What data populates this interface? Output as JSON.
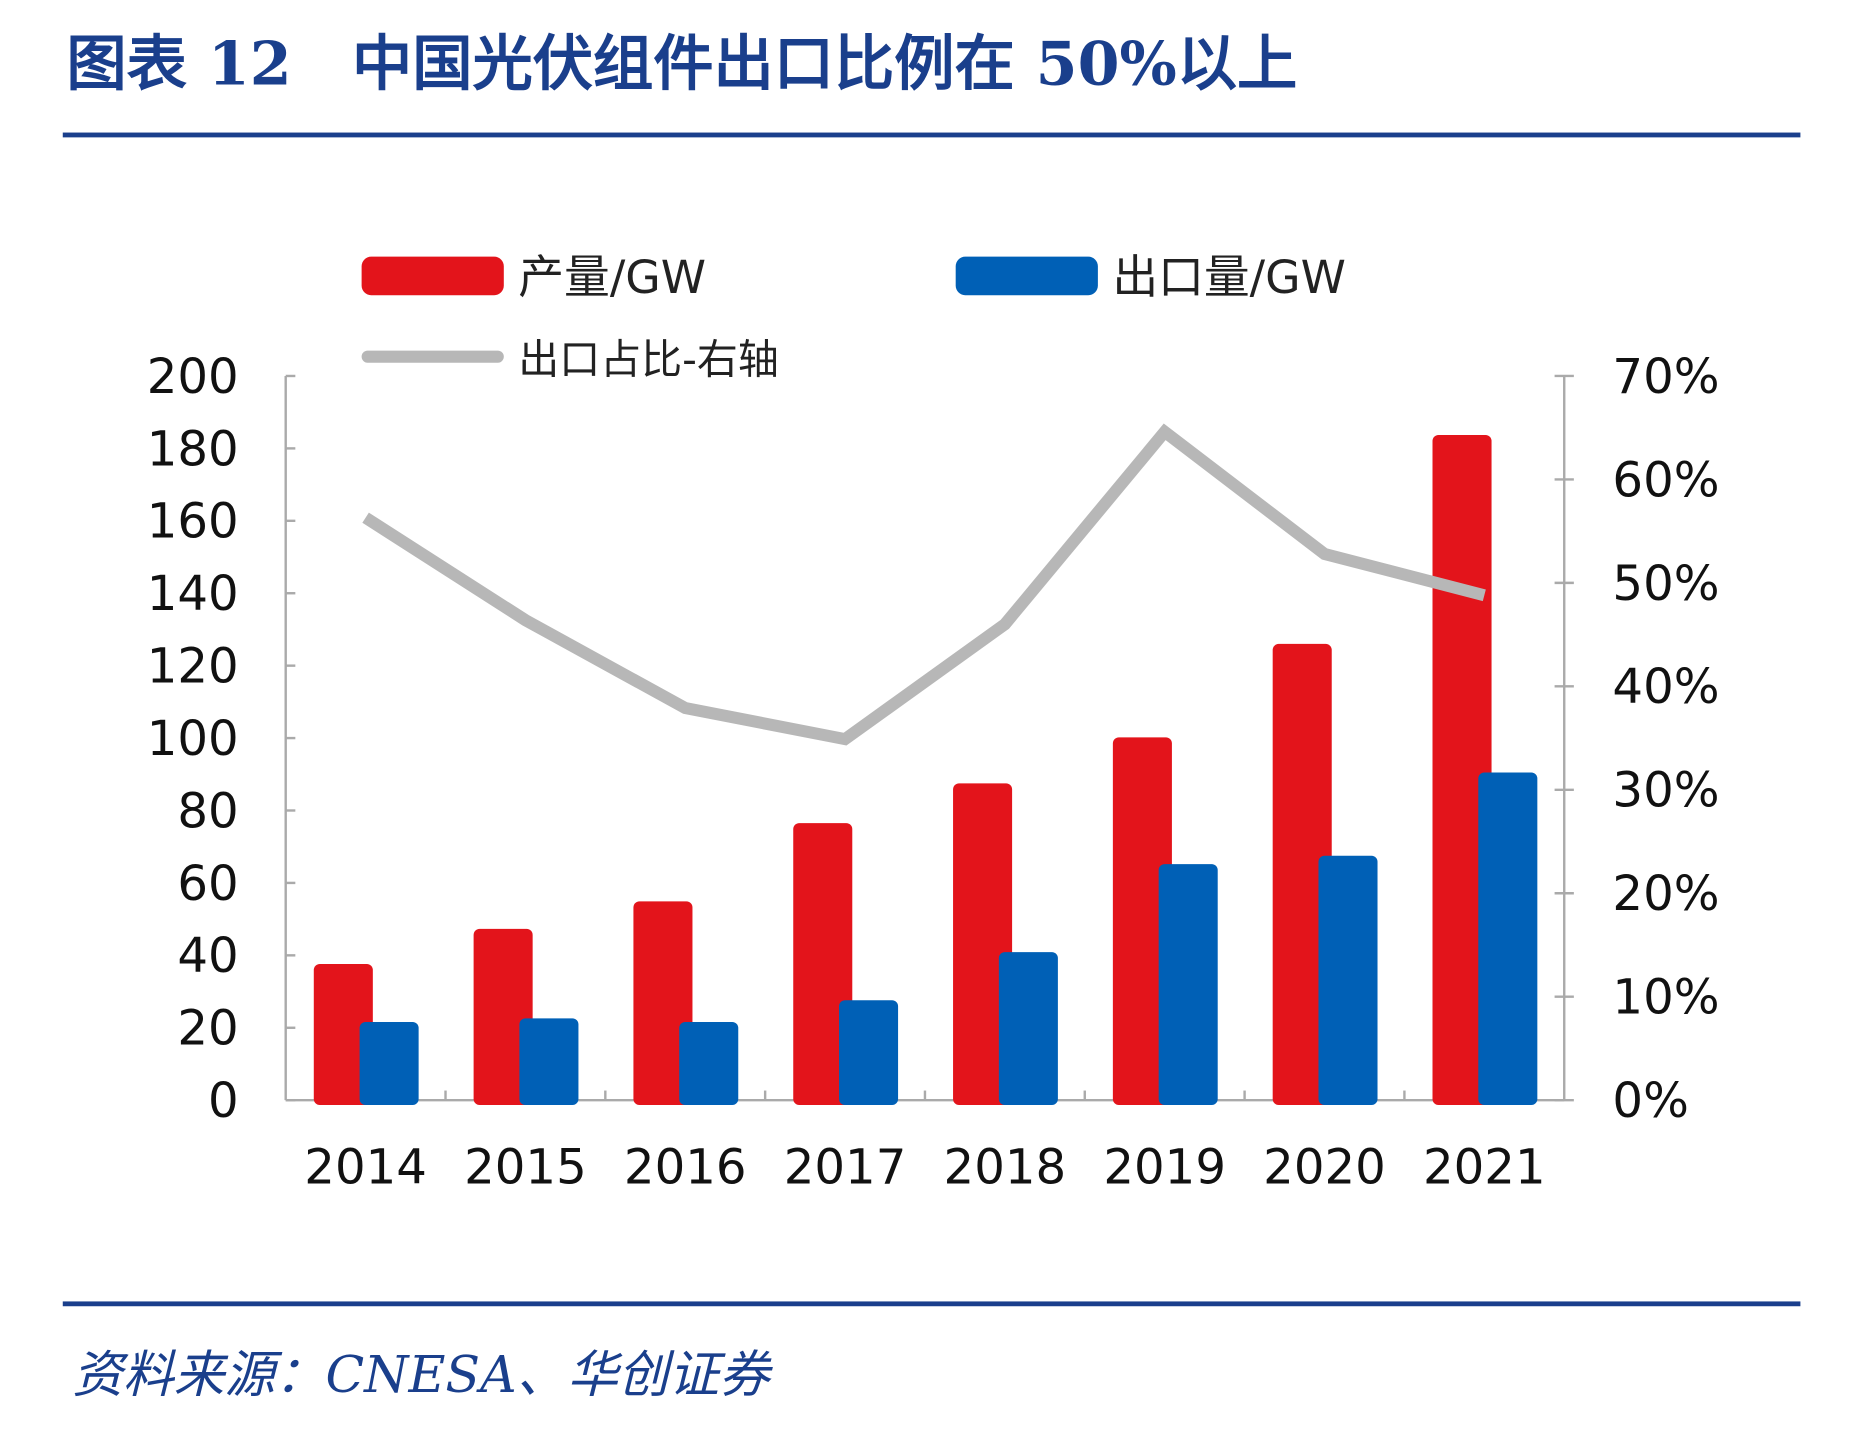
{
  "header": {
    "title": "图表 12　中国光伏组件出口比例在 50%以上"
  },
  "footer": {
    "source": "资料来源：CNESA、华创证券"
  },
  "colors": {
    "production": "#e3141b",
    "export": "#0060b6",
    "ratio": "#b7b7b7",
    "accent": "#1a3f8c"
  },
  "chart_data": {
    "type": "bar",
    "categories": [
      "2014",
      "2015",
      "2016",
      "2017",
      "2018",
      "2019",
      "2020",
      "2021"
    ],
    "series": [
      {
        "name": "产量/GW",
        "type": "bar",
        "axis": "left",
        "values": [
          37.6,
          47.3,
          54.9,
          76.5,
          87.5,
          100.2,
          126,
          183.7
        ]
      },
      {
        "name": "出口量/GW",
        "type": "bar",
        "axis": "left",
        "values": [
          21.6,
          22.6,
          21.6,
          27.6,
          40.9,
          65.2,
          67.5,
          90.5
        ]
      },
      {
        "name": "出口占比-右轴",
        "type": "line",
        "axis": "right",
        "values": [
          56.3,
          46.4,
          37.9,
          34.9,
          46.0,
          64.6,
          52.8,
          48.8
        ]
      }
    ],
    "yleft": {
      "ylim": [
        0,
        200
      ],
      "ticks": [
        "0",
        "20",
        "40",
        "60",
        "80",
        "100",
        "120",
        "140",
        "160",
        "180",
        "200"
      ]
    },
    "yright": {
      "ylim": [
        0,
        70
      ],
      "ticks": [
        "0%",
        "10%",
        "20%",
        "30%",
        "40%",
        "50%",
        "60%",
        "70%"
      ]
    },
    "legend": "top",
    "grid": false
  }
}
